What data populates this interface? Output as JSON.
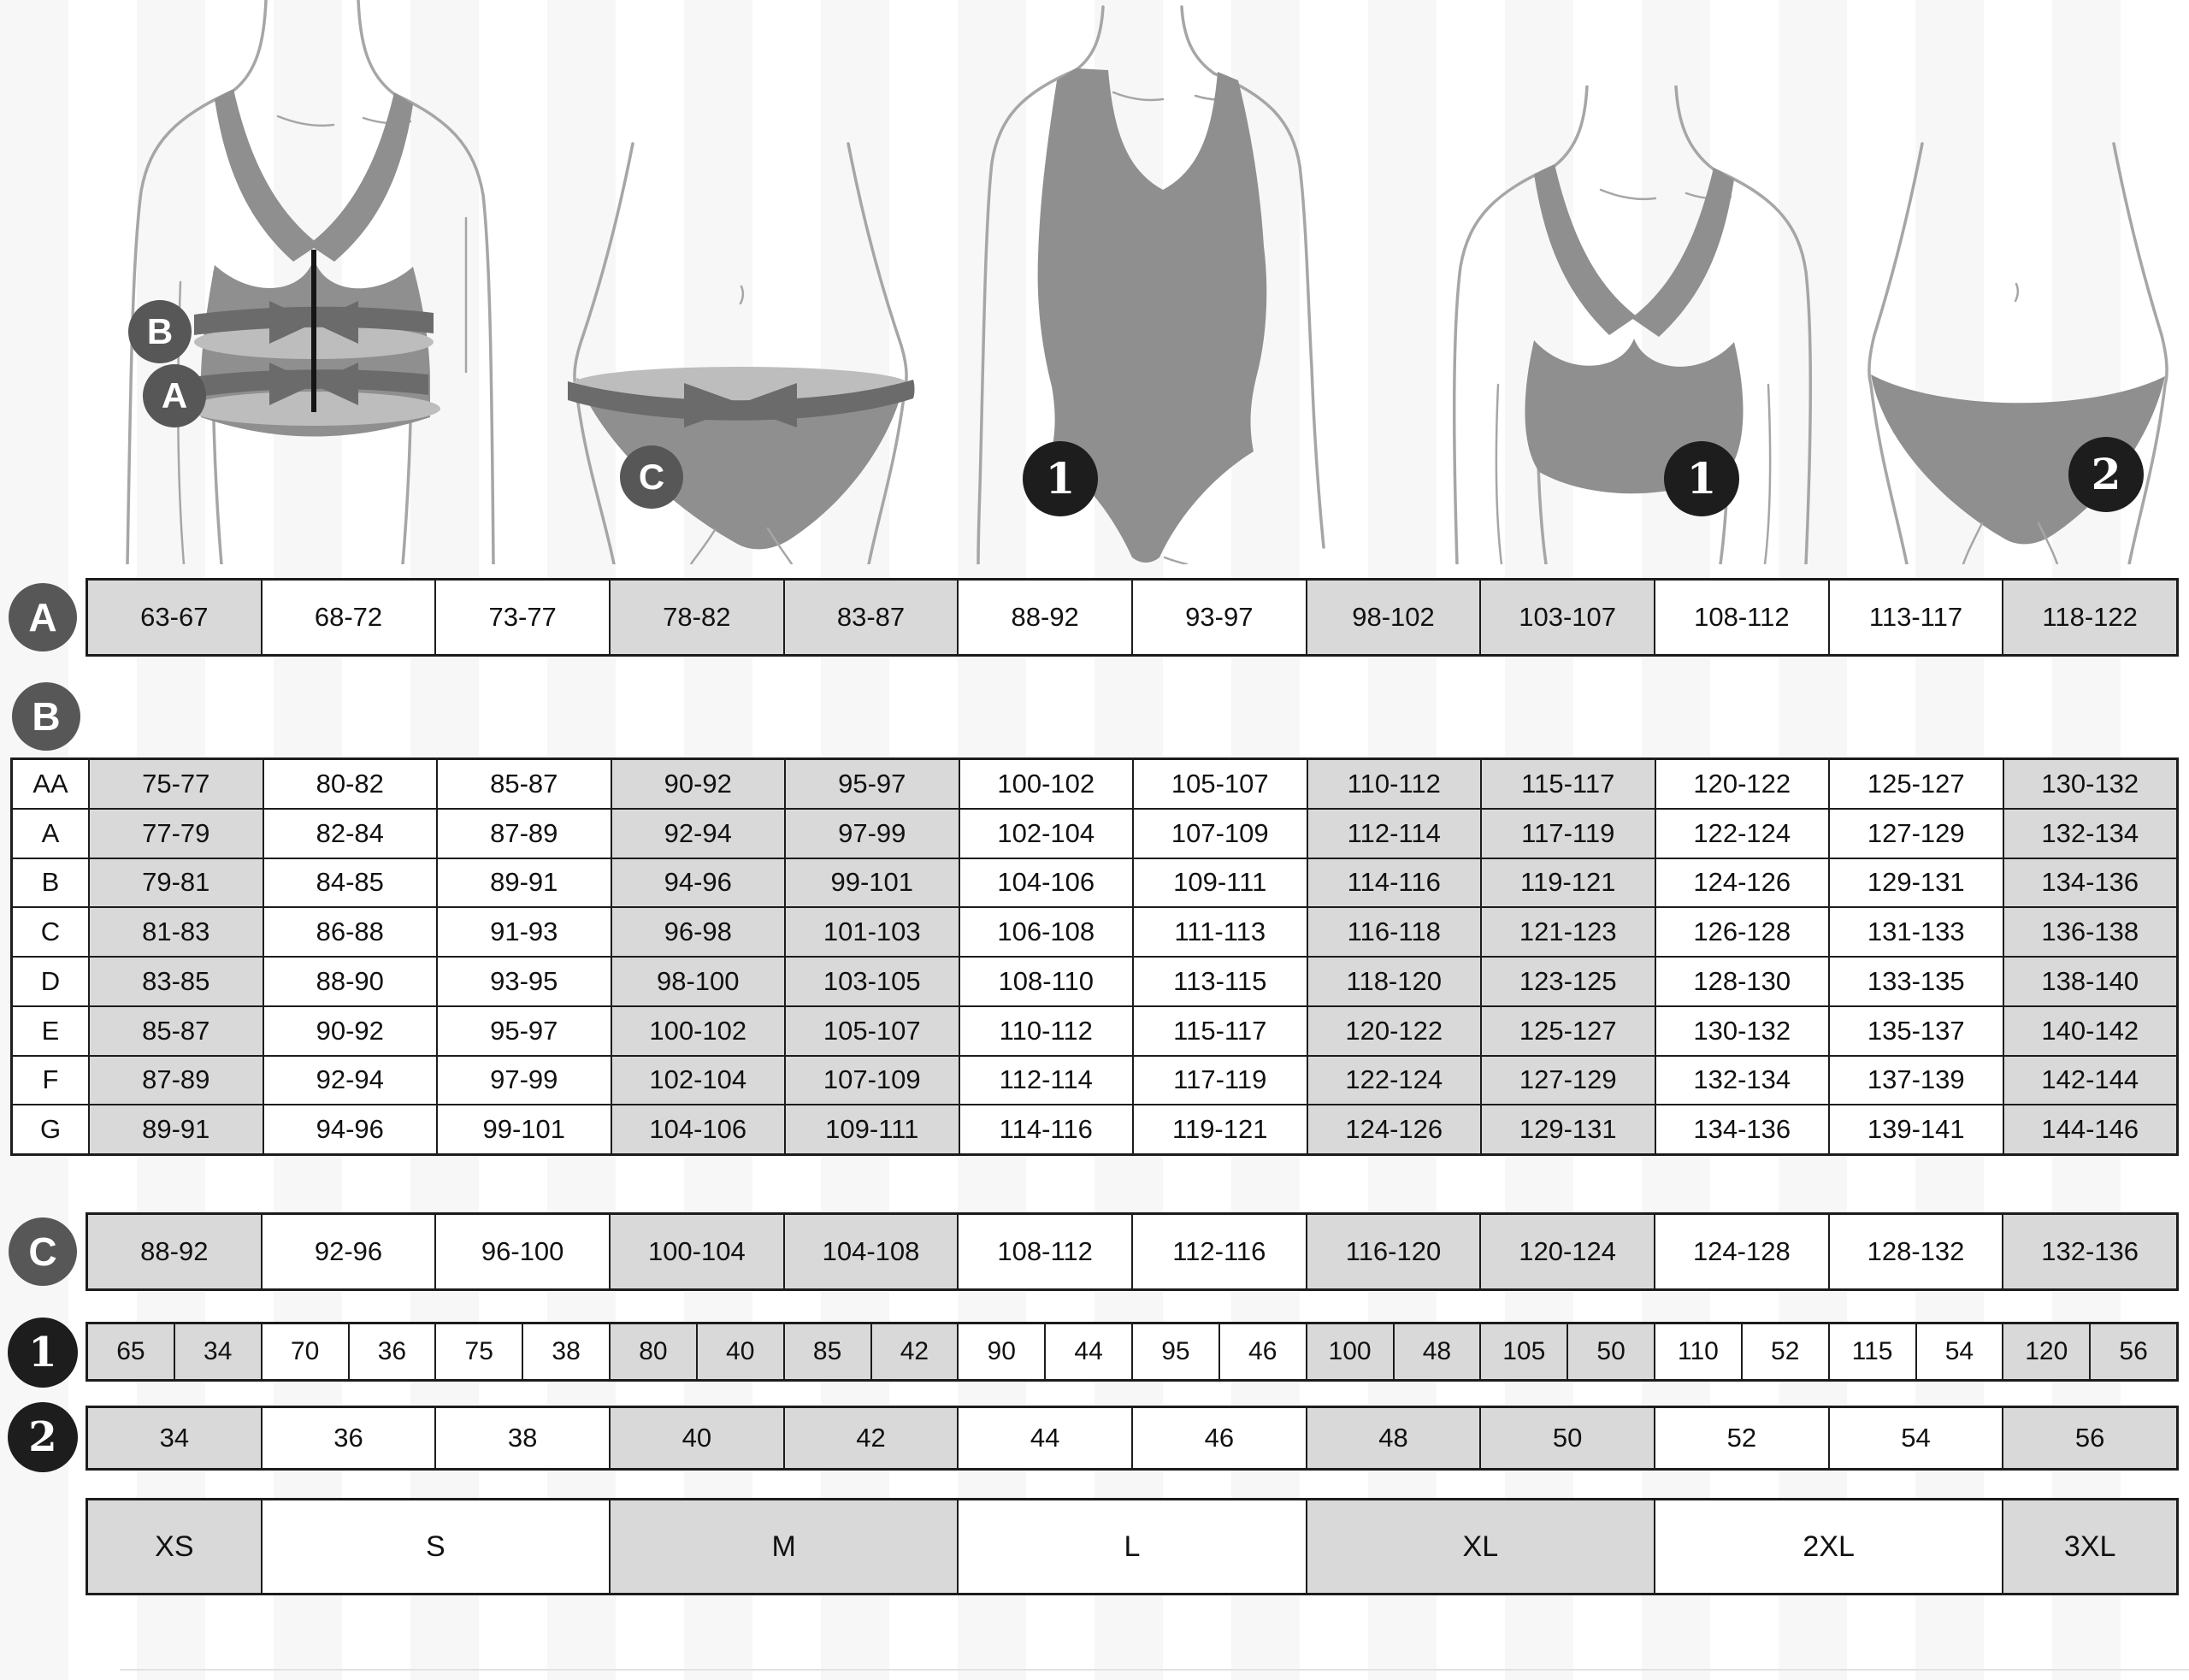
{
  "colors": {
    "cell_gray": "#d9d9d9",
    "cell_white": "#ffffff",
    "grid_line": "#1c1c1c",
    "letter_badge": "#575757",
    "number_badge": "#1d1d1d",
    "garment": "#8f8f8f",
    "band": "#6b6b6b",
    "band_light": "#bdbdbd",
    "outline": "#a6a6a6"
  },
  "shading": {
    "gray_columns": [
      1,
      4,
      5,
      8,
      9,
      12
    ]
  },
  "figures": [
    {
      "id": "bra-measurement",
      "badges": [
        {
          "label": "B",
          "type": "letter"
        },
        {
          "label": "A",
          "type": "letter"
        }
      ]
    },
    {
      "id": "panties-measurement",
      "badges": [
        {
          "label": "C",
          "type": "letter"
        }
      ]
    },
    {
      "id": "swimsuit",
      "badges": [
        {
          "label": "1",
          "type": "number"
        }
      ]
    },
    {
      "id": "bra",
      "badges": [
        {
          "label": "1",
          "type": "number"
        }
      ]
    },
    {
      "id": "panties",
      "badges": [
        {
          "label": "2",
          "type": "number"
        }
      ]
    }
  ],
  "underbust_row": {
    "label": "A",
    "values": [
      "63-67",
      "68-72",
      "73-77",
      "78-82",
      "83-87",
      "88-92",
      "93-97",
      "98-102",
      "103-107",
      "108-112",
      "113-117",
      "118-122"
    ]
  },
  "bust_table": {
    "label": "B",
    "cups": [
      "AA",
      "A",
      "B",
      "C",
      "D",
      "E",
      "F",
      "G"
    ],
    "rows": [
      [
        "75-77",
        "80-82",
        "85-87",
        "90-92",
        "95-97",
        "100-102",
        "105-107",
        "110-112",
        "115-117",
        "120-122",
        "125-127",
        "130-132"
      ],
      [
        "77-79",
        "82-84",
        "87-89",
        "92-94",
        "97-99",
        "102-104",
        "107-109",
        "112-114",
        "117-119",
        "122-124",
        "127-129",
        "132-134"
      ],
      [
        "79-81",
        "84-85",
        "89-91",
        "94-96",
        "99-101",
        "104-106",
        "109-111",
        "114-116",
        "119-121",
        "124-126",
        "129-131",
        "134-136"
      ],
      [
        "81-83",
        "86-88",
        "91-93",
        "96-98",
        "101-103",
        "106-108",
        "111-113",
        "116-118",
        "121-123",
        "126-128",
        "131-133",
        "136-138"
      ],
      [
        "83-85",
        "88-90",
        "93-95",
        "98-100",
        "103-105",
        "108-110",
        "113-115",
        "118-120",
        "123-125",
        "128-130",
        "133-135",
        "138-140"
      ],
      [
        "85-87",
        "90-92",
        "95-97",
        "100-102",
        "105-107",
        "110-112",
        "115-117",
        "120-122",
        "125-127",
        "130-132",
        "135-137",
        "140-142"
      ],
      [
        "87-89",
        "92-94",
        "97-99",
        "102-104",
        "107-109",
        "112-114",
        "117-119",
        "122-124",
        "127-129",
        "132-134",
        "137-139",
        "142-144"
      ],
      [
        "89-91",
        "94-96",
        "99-101",
        "104-106",
        "109-111",
        "114-116",
        "119-121",
        "124-126",
        "129-131",
        "134-136",
        "139-141",
        "144-146"
      ]
    ]
  },
  "hip_row": {
    "label": "C",
    "values": [
      "88-92",
      "92-96",
      "96-100",
      "100-104",
      "104-108",
      "108-112",
      "112-116",
      "116-120",
      "120-124",
      "124-128",
      "128-132",
      "132-136"
    ]
  },
  "band_cup_row": {
    "label": "1",
    "values": [
      "65",
      "34",
      "70",
      "36",
      "75",
      "38",
      "80",
      "40",
      "85",
      "42",
      "90",
      "44",
      "95",
      "46",
      "100",
      "48",
      "105",
      "50",
      "110",
      "52",
      "115",
      "54",
      "120",
      "56"
    ]
  },
  "dress_row": {
    "label": "2",
    "values": [
      "34",
      "36",
      "38",
      "40",
      "42",
      "44",
      "46",
      "48",
      "50",
      "52",
      "54",
      "56"
    ]
  },
  "size_row": {
    "labels": [
      "XS",
      "S",
      "M",
      "L",
      "XL",
      "2XL",
      "3XL"
    ],
    "spans": [
      1,
      2,
      2,
      2,
      2,
      2,
      1
    ]
  }
}
